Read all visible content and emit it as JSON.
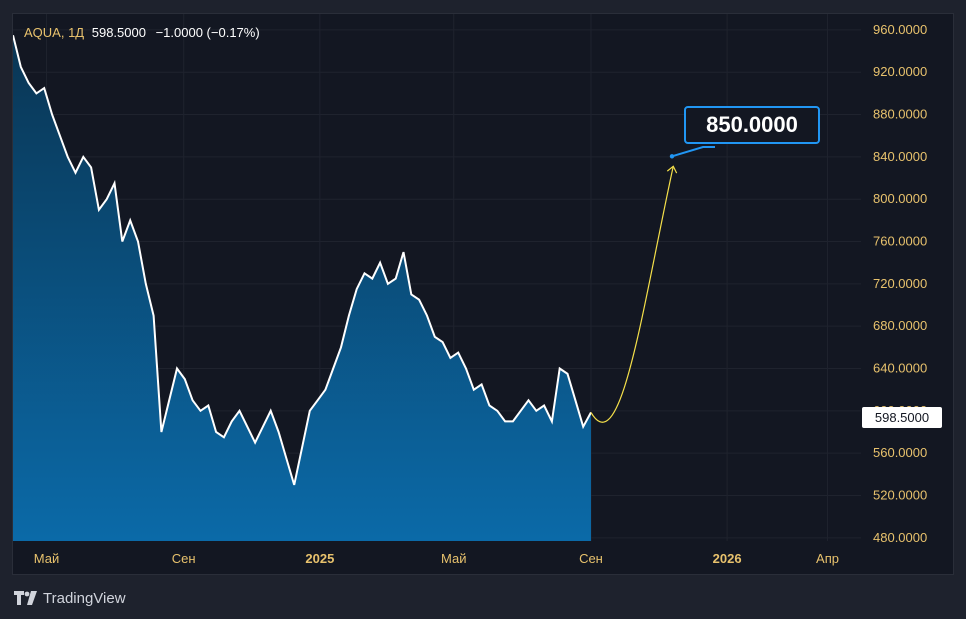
{
  "legend": {
    "symbol": "AQUA, 1Д",
    "price": "598.5000",
    "change": "−1.0000 (−0.17%)"
  },
  "brand": "TradingView",
  "callout_label": "850.0000",
  "last_price_label": "598.5000",
  "colors": {
    "background": "#131722",
    "page": "#1e222d",
    "line": "#ffffff",
    "area_top": "#0a3553",
    "area_bottom": "#0b6aa8",
    "axis_text": "#e8c26d",
    "grid": "#1f232e",
    "forecast": "#f5e04a",
    "callout_border": "#2196f3"
  },
  "chart_data": {
    "type": "area",
    "title": "",
    "xlabel": "",
    "ylabel": "",
    "ylim": [
      477,
      975
    ],
    "y_ticks": [
      "960.0000",
      "920.0000",
      "880.0000",
      "840.0000",
      "800.0000",
      "760.0000",
      "720.0000",
      "680.0000",
      "640.0000",
      "600.0000",
      "560.0000",
      "520.0000",
      "480.0000"
    ],
    "x_ticks": [
      "Май",
      "Сен",
      "2025",
      "Май",
      "Сен",
      "2026",
      "Апр"
    ],
    "grid": true,
    "series": [
      {
        "dates": [
          "2024-04-01",
          "2024-04-08",
          "2024-04-15",
          "2024-04-22",
          "2024-04-29",
          "2024-05-06",
          "2024-05-13",
          "2024-05-20",
          "2024-05-27",
          "2024-06-03",
          "2024-06-10",
          "2024-06-17",
          "2024-06-24",
          "2024-07-01",
          "2024-07-08",
          "2024-07-15",
          "2024-07-22",
          "2024-07-29",
          "2024-08-05",
          "2024-08-12",
          "2024-08-19",
          "2024-08-26",
          "2024-09-02",
          "2024-09-09",
          "2024-09-16",
          "2024-09-23",
          "2024-09-30",
          "2024-10-07",
          "2024-10-14",
          "2024-10-21",
          "2024-10-28",
          "2024-11-04",
          "2024-11-11",
          "2024-11-18",
          "2024-11-25",
          "2024-12-02",
          "2024-12-09",
          "2024-12-16",
          "2024-12-23",
          "2024-12-30",
          "2025-01-06",
          "2025-01-13",
          "2025-01-20",
          "2025-01-27",
          "2025-02-03",
          "2025-02-10",
          "2025-02-17",
          "2025-02-24",
          "2025-03-03",
          "2025-03-10",
          "2025-03-17",
          "2025-03-24",
          "2025-03-31",
          "2025-04-07",
          "2025-04-14",
          "2025-04-21",
          "2025-04-28",
          "2025-05-05",
          "2025-05-12",
          "2025-05-19",
          "2025-05-26",
          "2025-06-02",
          "2025-06-09",
          "2025-06-16",
          "2025-06-23",
          "2025-06-30",
          "2025-07-07",
          "2025-07-14",
          "2025-07-21",
          "2025-07-28",
          "2025-08-04",
          "2025-08-11",
          "2025-08-18",
          "2025-08-25",
          "2025-09-01"
        ],
        "values": [
          955,
          925,
          910,
          900,
          905,
          880,
          860,
          840,
          825,
          840,
          830,
          790,
          800,
          815,
          760,
          780,
          760,
          720,
          690,
          580,
          610,
          640,
          630,
          610,
          600,
          605,
          580,
          575,
          590,
          600,
          585,
          570,
          585,
          600,
          580,
          555,
          530,
          565,
          600,
          610,
          620,
          640,
          660,
          690,
          715,
          730,
          725,
          740,
          720,
          725,
          750,
          710,
          705,
          690,
          670,
          665,
          650,
          655,
          640,
          620,
          625,
          605,
          600,
          590,
          590,
          600,
          610,
          600,
          605,
          590,
          640,
          635,
          610,
          585,
          598.5
        ]
      }
    ],
    "forecast": {
      "values": [
        600,
        588,
        620,
        700,
        830
      ],
      "target": 850
    }
  }
}
